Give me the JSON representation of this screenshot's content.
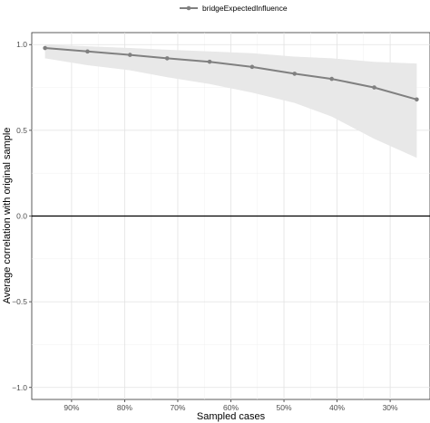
{
  "chart_data": {
    "type": "line",
    "xlabel": "Sampled cases",
    "ylabel": "Average correlation with original sample",
    "x_tick_labels": [
      "90%",
      "80%",
      "70%",
      "60%",
      "50%",
      "40%",
      "30%"
    ],
    "x_ticks": [
      0.9,
      0.8,
      0.7,
      0.6,
      0.5,
      0.4,
      0.3
    ],
    "xlim": [
      0.975,
      0.225
    ],
    "y_tick_labels": [
      "1.0",
      "0.5",
      "0.0",
      "−0.5",
      "−1.0"
    ],
    "y_ticks": [
      1.0,
      0.5,
      0.0,
      -0.5,
      -1.0
    ],
    "ylim": [
      -1.07,
      1.07
    ],
    "grid": true,
    "legend_position": "top",
    "reference_line_y": 0,
    "series": [
      {
        "name": "bridgeExpectedInfluence",
        "color": "#808080",
        "band_color": "#e8e8e8",
        "x": [
          0.95,
          0.87,
          0.79,
          0.72,
          0.64,
          0.56,
          0.48,
          0.41,
          0.33,
          0.25
        ],
        "y": [
          0.98,
          0.96,
          0.94,
          0.92,
          0.9,
          0.87,
          0.83,
          0.8,
          0.75,
          0.68
        ],
        "lower": [
          0.92,
          0.88,
          0.85,
          0.81,
          0.77,
          0.72,
          0.66,
          0.58,
          0.45,
          0.34
        ],
        "upper": [
          1.0,
          0.99,
          0.98,
          0.97,
          0.96,
          0.95,
          0.93,
          0.92,
          0.9,
          0.89
        ]
      }
    ]
  }
}
